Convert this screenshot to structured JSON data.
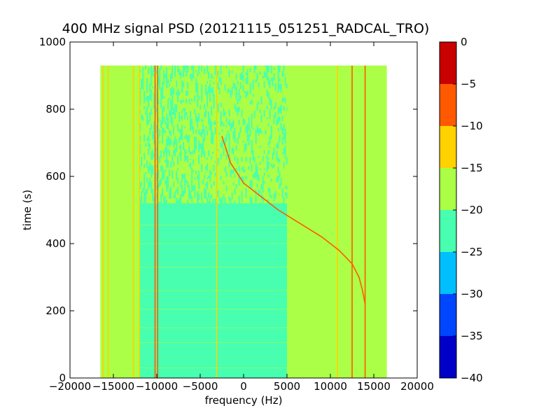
{
  "chart_data": {
    "type": "heatmap",
    "title": "400 MHz signal PSD (20121115_051251_RADCAL_TRO)",
    "xlabel": "frequency (Hz)",
    "ylabel": "time (s)",
    "xlim": [
      -20000,
      20000
    ],
    "ylim": [
      0,
      1000
    ],
    "x_ticks": [
      -20000,
      -15000,
      -10000,
      -5000,
      0,
      5000,
      10000,
      15000,
      20000
    ],
    "x_tick_labels": [
      "−20000",
      "−15000",
      "−10000",
      "−5000",
      "0",
      "5000",
      "10000",
      "15000",
      "20000"
    ],
    "y_ticks": [
      0,
      200,
      400,
      600,
      800,
      1000
    ],
    "y_tick_labels": [
      "0",
      "200",
      "400",
      "600",
      "800",
      "1000"
    ],
    "data_extent": {
      "freq": [
        -16500,
        16500
      ],
      "time": [
        0,
        930
      ]
    },
    "colorbar": {
      "range": [
        -40,
        0
      ],
      "ticks": [
        -40,
        -35,
        -30,
        -25,
        -20,
        -15,
        -10,
        -5,
        0
      ],
      "tick_labels": [
        "−40",
        "−35",
        "−30",
        "−25",
        "−20",
        "−15",
        "−10",
        "−5",
        "0"
      ],
      "levels": [
        {
          "from": -40,
          "to": -35,
          "color": "#0000c8"
        },
        {
          "from": -35,
          "to": -30,
          "color": "#0046ff"
        },
        {
          "from": -30,
          "to": -25,
          "color": "#00bfff"
        },
        {
          "from": -25,
          "to": -20,
          "color": "#47ffaf"
        },
        {
          "from": -20,
          "to": -15,
          "color": "#acff47"
        },
        {
          "from": -15,
          "to": -10,
          "color": "#ffd200"
        },
        {
          "from": -10,
          "to": -5,
          "color": "#ff5a00"
        },
        {
          "from": -5,
          "to": 0,
          "color": "#c80000"
        }
      ]
    },
    "background_level_color": "#acff47",
    "regions": [
      {
        "freq": [
          -12000,
          5000
        ],
        "time": [
          0,
          520
        ],
        "color": "#47ffaf"
      },
      {
        "freq": [
          -12000,
          -3500
        ],
        "time": [
          520,
          930
        ],
        "color": "#47ffaf",
        "density": 0.35
      },
      {
        "freq": [
          -3500,
          5000
        ],
        "time": [
          520,
          930
        ],
        "color": "#47ffaf",
        "density": 0.25
      }
    ],
    "vertical_lines": [
      {
        "freq": -16200,
        "time": [
          0,
          930
        ],
        "color": "#ffd200"
      },
      {
        "freq": -15600,
        "time": [
          0,
          930
        ],
        "color": "#ffd200"
      },
      {
        "freq": -12700,
        "time": [
          0,
          930
        ],
        "color": "#ffd200"
      },
      {
        "freq": -12000,
        "time": [
          0,
          930
        ],
        "color": "#ffd200"
      },
      {
        "freq": -10200,
        "time": [
          0,
          930
        ],
        "color": "#ff5a00"
      },
      {
        "freq": -9900,
        "time": [
          0,
          930
        ],
        "color": "#ff5a00"
      },
      {
        "freq": -3100,
        "time": [
          0,
          930
        ],
        "color": "#ffd200"
      },
      {
        "freq": 10800,
        "time": [
          0,
          930
        ],
        "color": "#ffd200"
      },
      {
        "freq": 12500,
        "time": [
          0,
          930
        ],
        "color": "#ff5a00"
      },
      {
        "freq": 14000,
        "time": [
          0,
          930
        ],
        "color": "#ff5a00"
      }
    ],
    "chirp": {
      "color": "#ff5a00",
      "points": [
        [
          -2500,
          720
        ],
        [
          -1500,
          640
        ],
        [
          0,
          580
        ],
        [
          2000,
          540
        ],
        [
          4000,
          500
        ],
        [
          6500,
          460
        ],
        [
          9000,
          420
        ],
        [
          11000,
          380
        ],
        [
          12500,
          340
        ],
        [
          13300,
          300
        ],
        [
          13700,
          260
        ],
        [
          14000,
          220
        ]
      ]
    }
  }
}
